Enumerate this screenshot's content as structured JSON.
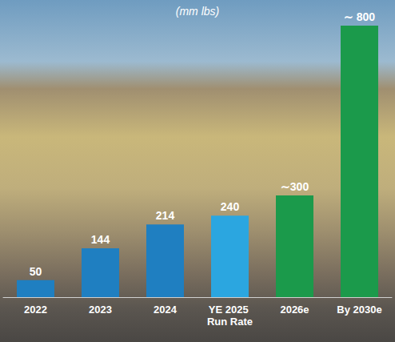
{
  "chart_data": {
    "type": "bar",
    "title": "(mm lbs)",
    "categories": [
      "2022",
      "2023",
      "2024",
      "YE 2025 Run Rate",
      "2026e",
      "By 2030e"
    ],
    "values": [
      50,
      144,
      214,
      240,
      300,
      800
    ],
    "value_labels": [
      "50",
      "144",
      "214",
      "240",
      "∼300",
      "∼ 800"
    ],
    "colors": [
      "#1f7fc1",
      "#1f7fc1",
      "#1f7fc1",
      "#2ba6e0",
      "#1b9a4b",
      "#1b9a4b"
    ],
    "ylim": [
      0,
      800
    ],
    "yticks": [],
    "grid": false,
    "data_labels": true,
    "tick_labels": "x"
  }
}
